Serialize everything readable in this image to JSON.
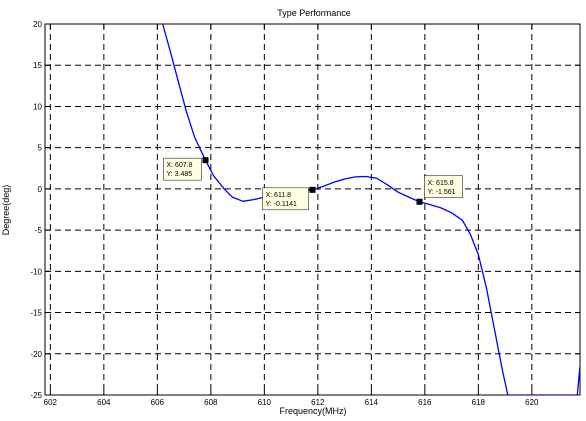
{
  "chart_data": {
    "type": "line",
    "title": "Type Performance",
    "xlabel": "Frequency(MHz)",
    "ylabel": "Degree(deg)",
    "xlim": [
      601.8,
      621.8
    ],
    "ylim": [
      -25,
      20
    ],
    "grid": true,
    "x_ticks": [
      602,
      604,
      606,
      608,
      610,
      612,
      614,
      616,
      618,
      620
    ],
    "y_ticks": [
      -25,
      -20,
      -15,
      -10,
      -5,
      0,
      5,
      10,
      15,
      20
    ],
    "series": [
      {
        "color": "#0000ff",
        "x": [
          606.2,
          606.5,
          606.8,
          607.1,
          607.4,
          607.8,
          608.1,
          608.5,
          608.8,
          609.2,
          609.6,
          610.0,
          610.5,
          611.0,
          611.4,
          611.8,
          612.2,
          612.6,
          613.0,
          613.4,
          613.8,
          614.2,
          614.6,
          615.0,
          615.4,
          615.8,
          616.2,
          616.6,
          617.0,
          617.4,
          617.7,
          618.0,
          618.3,
          618.6,
          618.9,
          619.1,
          621.7,
          621.8
        ],
        "y": [
          20.0,
          16.5,
          12.8,
          9.2,
          6.2,
          3.485,
          1.6,
          0.0,
          -1.0,
          -1.5,
          -1.3,
          -1.0,
          -0.7,
          -0.4,
          -0.25,
          -0.1141,
          0.3,
          0.8,
          1.2,
          1.45,
          1.5,
          1.3,
          0.5,
          -0.4,
          -1.0,
          -1.561,
          -1.9,
          -2.3,
          -2.9,
          -3.8,
          -5.5,
          -8.0,
          -12.0,
          -17.0,
          -22.0,
          -25.0,
          -25.0,
          -21.5
        ]
      }
    ],
    "datatips": [
      {
        "x": 607.8,
        "y": 3.485,
        "x_label": "X: 607.8",
        "y_label": "Y: 3.485"
      },
      {
        "x": 611.8,
        "y": -0.1141,
        "x_label": "X: 611.8",
        "y_label": "Y: -0.1141"
      },
      {
        "x": 615.8,
        "y": -1.561,
        "x_label": "X: 615.8",
        "y_label": "Y: -1.561"
      }
    ]
  }
}
